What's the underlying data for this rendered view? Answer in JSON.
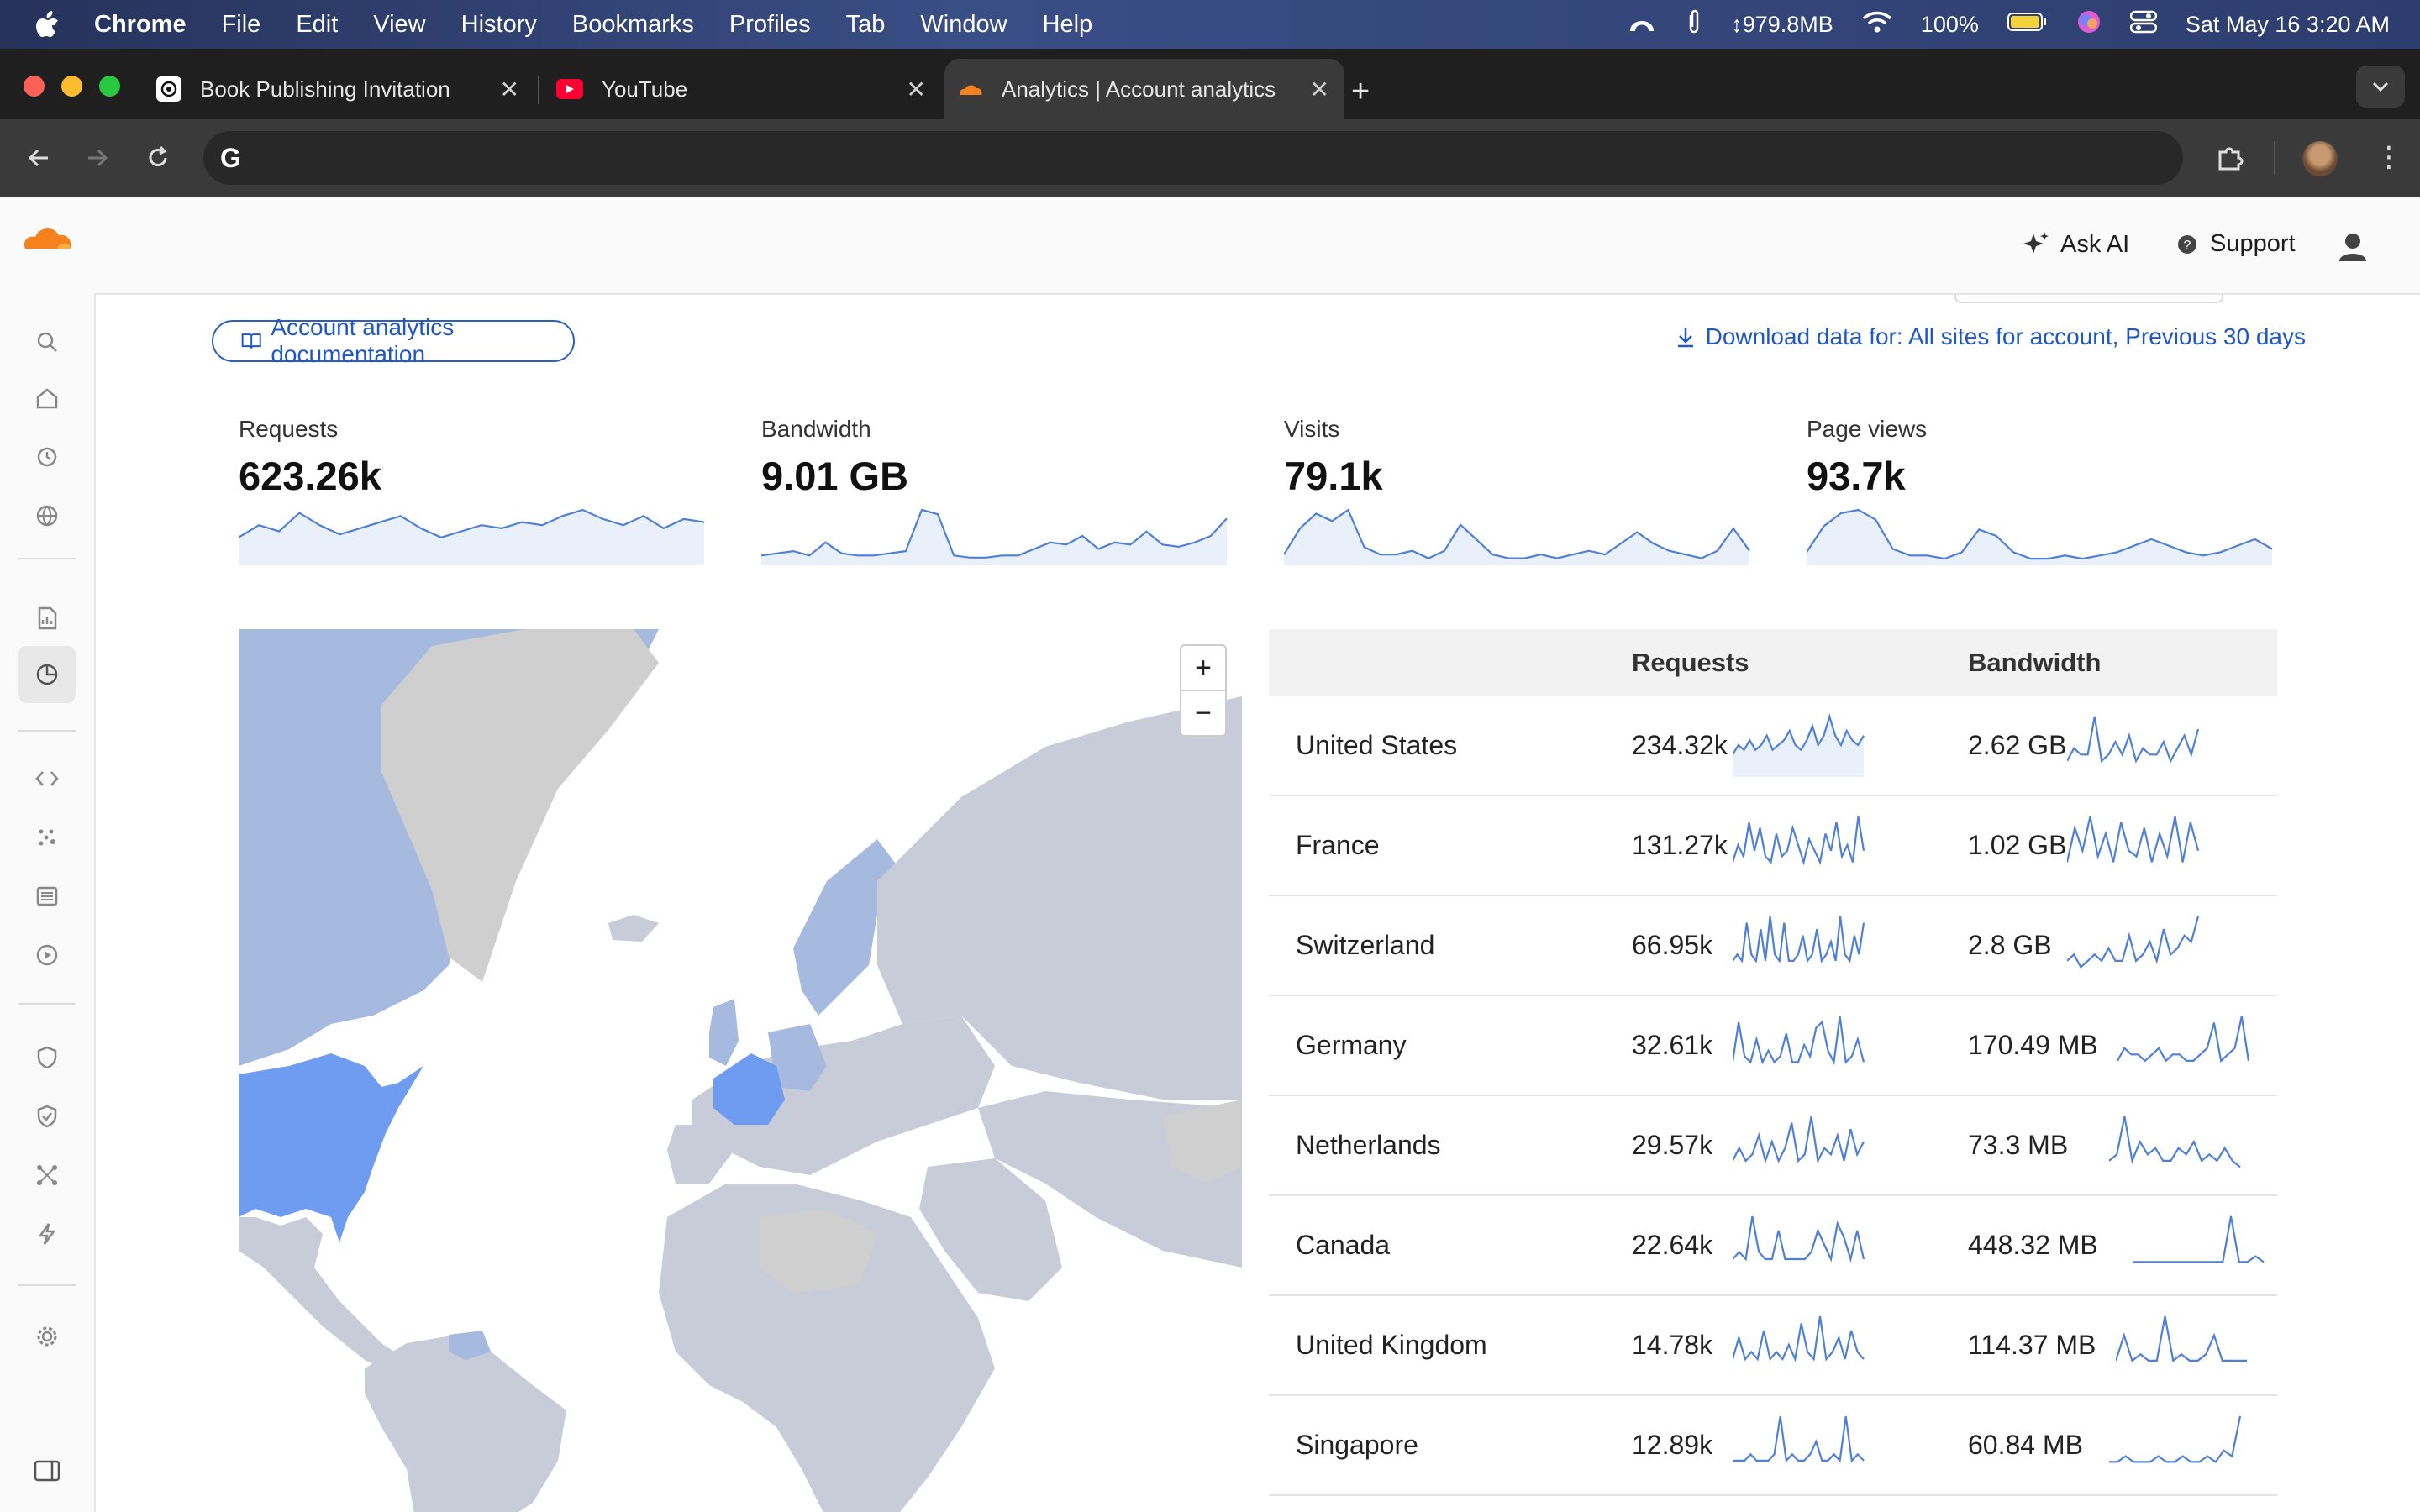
{
  "menubar": {
    "app": "Chrome",
    "items": [
      "File",
      "Edit",
      "View",
      "History",
      "Bookmarks",
      "Profiles",
      "Tab",
      "Window",
      "Help"
    ],
    "memory": "↕979.8MB",
    "battery": "100%",
    "datetime": "Sat May 16  3:20 AM"
  },
  "tabs": [
    {
      "title": "Book Publishing Invitation",
      "icon": "chatgpt-icon"
    },
    {
      "title": "YouTube",
      "icon": "youtube-icon"
    },
    {
      "title": "Analytics | Account analytics |",
      "icon": "cloudflare-icon"
    }
  ],
  "header": {
    "ask_ai": "Ask AI",
    "support": "Support"
  },
  "links": {
    "docs": "Account analytics documentation",
    "download": "Download data for: All sites for account, Previous 30 days"
  },
  "stats": [
    {
      "label": "Requests",
      "value": "623.26k",
      "series": [
        8,
        12,
        10,
        16,
        12,
        9,
        11,
        13,
        15,
        11,
        8,
        10,
        12,
        11,
        13,
        12,
        15,
        17,
        14,
        12,
        15,
        11,
        14,
        13
      ]
    },
    {
      "label": "Bandwidth",
      "value": "9.01 GB",
      "series": [
        3,
        4,
        5,
        3,
        9,
        4,
        3,
        3,
        4,
        5,
        24,
        22,
        3,
        2,
        2,
        3,
        3,
        6,
        9,
        8,
        12,
        6,
        9,
        8,
        14,
        8,
        7,
        9,
        12,
        20
      ]
    },
    {
      "label": "Visits",
      "value": "79.1k",
      "series": [
        2,
        9,
        13,
        11,
        14,
        4,
        2,
        2,
        3,
        1,
        3,
        10,
        6,
        2,
        1,
        1,
        2,
        1,
        2,
        3,
        2,
        5,
        8,
        5,
        3,
        2,
        1,
        3,
        9,
        3
      ]
    },
    {
      "label": "Page views",
      "value": "93.7k",
      "series": [
        3,
        11,
        15,
        16,
        13,
        4,
        2,
        2,
        1,
        3,
        10,
        8,
        3,
        1,
        1,
        2,
        1,
        2,
        3,
        5,
        7,
        5,
        3,
        2,
        3,
        5,
        7,
        4
      ]
    }
  ],
  "map": {
    "zoom_in": "+",
    "zoom_out": "−"
  },
  "table": {
    "headers": [
      "Requests",
      "Bandwidth"
    ],
    "rows": [
      {
        "country": "United States",
        "requests": "234.32k",
        "bandwidth": "2.62 GB",
        "req_series": [
          4,
          6,
          5,
          7,
          5,
          6,
          8,
          5,
          6,
          7,
          9,
          6,
          5,
          7,
          10,
          6,
          8,
          12,
          8,
          6,
          9,
          7,
          6,
          8
        ],
        "bw_series": [
          2,
          4,
          3,
          3,
          9,
          2,
          3,
          5,
          3,
          6,
          2,
          4,
          3,
          3,
          5,
          2,
          4,
          6,
          3,
          7
        ]
      },
      {
        "country": "France",
        "requests": "131.27k",
        "bandwidth": "1.02 GB",
        "req_series": [
          2,
          5,
          3,
          9,
          4,
          8,
          3,
          2,
          7,
          3,
          4,
          8,
          5,
          2,
          6,
          4,
          2,
          7,
          4,
          9,
          3,
          5,
          2,
          10,
          4
        ],
        "bw_series": [
          2,
          8,
          4,
          10,
          3,
          7,
          2,
          9,
          4,
          3,
          8,
          2,
          7,
          3,
          10,
          2,
          9,
          4
        ]
      },
      {
        "country": "Switzerland",
        "requests": "66.95k",
        "bandwidth": "2.8 GB",
        "req_series": [
          2,
          3,
          2,
          8,
          3,
          2,
          7,
          2,
          9,
          3,
          2,
          8,
          2,
          2,
          3,
          6,
          2,
          3,
          7,
          2,
          3,
          5,
          2,
          9,
          3,
          2,
          6,
          3,
          8
        ],
        "bw_series": [
          2,
          3,
          1,
          2,
          3,
          2,
          4,
          2,
          2,
          6,
          2,
          3,
          5,
          2,
          7,
          3,
          4,
          6,
          5,
          9
        ]
      },
      {
        "country": "Germany",
        "requests": "32.61k",
        "bandwidth": "170.49 MB",
        "req_series": [
          2,
          9,
          3,
          2,
          6,
          2,
          4,
          2,
          3,
          7,
          2,
          2,
          5,
          3,
          8,
          9,
          4,
          2,
          10,
          2,
          3,
          6,
          2
        ],
        "bw_series": [
          2,
          4,
          3,
          3,
          2,
          3,
          4,
          2,
          3,
          3,
          2,
          2,
          3,
          4,
          8,
          2,
          3,
          4,
          9,
          2
        ]
      },
      {
        "country": "Netherlands",
        "requests": "29.57k",
        "bandwidth": "73.3 MB",
        "req_series": [
          2,
          4,
          2,
          3,
          6,
          2,
          5,
          2,
          4,
          8,
          2,
          3,
          9,
          2,
          4,
          3,
          6,
          2,
          7,
          3,
          5
        ],
        "bw_series": [
          2,
          3,
          9,
          2,
          5,
          3,
          4,
          2,
          2,
          4,
          3,
          5,
          2,
          3,
          2,
          4,
          2,
          1
        ]
      },
      {
        "country": "Canada",
        "requests": "22.64k",
        "bandwidth": "448.32 MB",
        "req_series": [
          2,
          3,
          2,
          8,
          3,
          2,
          2,
          6,
          2,
          2,
          2,
          2,
          3,
          6,
          4,
          2,
          7,
          5,
          2,
          6,
          2
        ],
        "bw_series": [
          2,
          2,
          2,
          2,
          2,
          2,
          2,
          2,
          2,
          2,
          2,
          2,
          10,
          2,
          2,
          3,
          2
        ]
      },
      {
        "country": "United Kingdom",
        "requests": "14.78k",
        "bandwidth": "114.37 MB",
        "req_series": [
          2,
          5,
          2,
          3,
          2,
          6,
          2,
          3,
          2,
          4,
          2,
          7,
          3,
          2,
          8,
          2,
          3,
          5,
          2,
          6,
          3,
          2
        ],
        "bw_series": [
          2,
          6,
          2,
          3,
          2,
          2,
          9,
          2,
          3,
          2,
          2,
          3,
          6,
          2,
          2,
          2,
          2
        ]
      },
      {
        "country": "Singapore",
        "requests": "12.89k",
        "bandwidth": "60.84 MB",
        "req_series": [
          2,
          2,
          2,
          3,
          2,
          2,
          2,
          3,
          9,
          2,
          3,
          2,
          2,
          3,
          5,
          2,
          2,
          3,
          2,
          9,
          2,
          3,
          2
        ],
        "bw_series": [
          2,
          2,
          3,
          2,
          2,
          2,
          3,
          2,
          2,
          3,
          2,
          2,
          3,
          2,
          4,
          3,
          10
        ]
      }
    ]
  },
  "colors": {
    "accent": "#2c5fbe",
    "spark": "#4f80d8",
    "map_high": "#6d9cf0",
    "map_mid": "#a6b9df",
    "map_low": "#c7ccd8",
    "map_none": "#cfcfcf"
  }
}
